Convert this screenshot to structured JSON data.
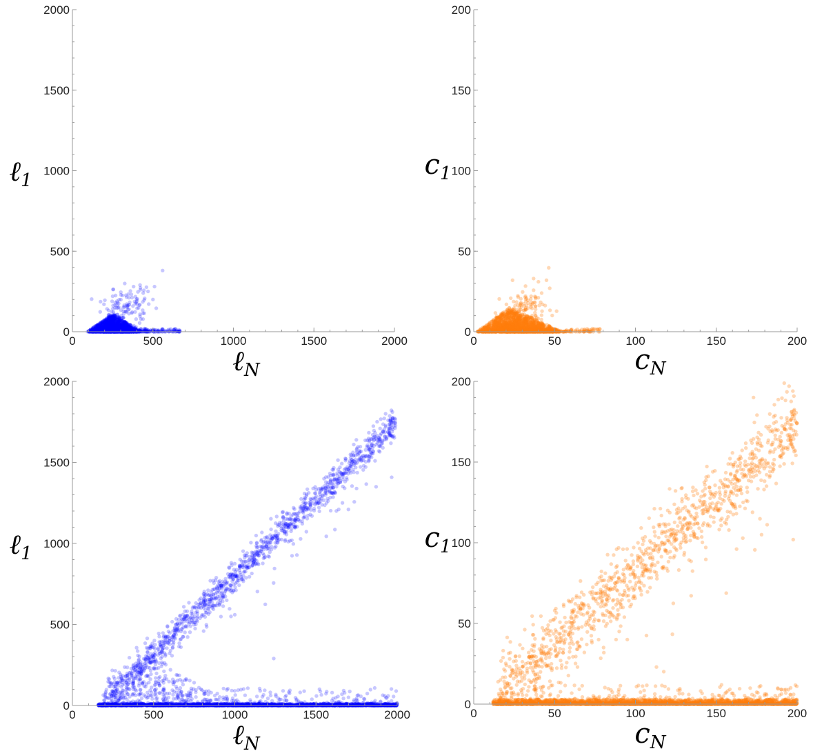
{
  "chart_data": [
    {
      "id": "top-left",
      "type": "scatter",
      "xlabel": "ℓ",
      "xlabel_sub": "N",
      "ylabel": "ℓ",
      "ylabel_sub": "1",
      "xlim": [
        0,
        2000
      ],
      "ylim": [
        0,
        2000
      ],
      "xticks": [
        0,
        500,
        1000,
        1500,
        2000
      ],
      "yticks": [
        0,
        500,
        1000,
        1500,
        2000
      ],
      "minor_tick_step": 100,
      "grid": false,
      "color": "#0000ff",
      "point_opacity": 0.22,
      "clusters": [
        {
          "kind": "triangle",
          "count": 2200,
          "x_start": 90,
          "x_peak": 250,
          "x_end": 430,
          "y_max": 110,
          "skew": 3
        },
        {
          "kind": "blob",
          "count": 120,
          "x_mean": 330,
          "x_sd": 70,
          "y_mean": 150,
          "y_sd": 60
        },
        {
          "kind": "band",
          "count": 180,
          "x_min": 300,
          "x_max": 670,
          "y_max": 20
        }
      ],
      "points": [
        [
          250,
          220
        ],
        [
          380,
          280
        ],
        [
          420,
          290
        ],
        [
          510,
          280
        ],
        [
          560,
          380
        ],
        [
          470,
          250
        ],
        [
          500,
          200
        ],
        [
          440,
          240
        ]
      ]
    },
    {
      "id": "top-right",
      "type": "scatter",
      "xlabel": "c",
      "xlabel_sub": "N",
      "ylabel": "c",
      "ylabel_sub": "1",
      "xlim": [
        0,
        200
      ],
      "ylim": [
        0,
        200
      ],
      "xticks": [
        0,
        50,
        100,
        150,
        200
      ],
      "yticks": [
        0,
        50,
        100,
        150,
        200
      ],
      "minor_tick_step": 10,
      "grid": false,
      "color": "#ff7f0e",
      "point_opacity": 0.3,
      "clusters": [
        {
          "kind": "triangle",
          "count": 2200,
          "x_start": 2,
          "x_peak": 22,
          "x_end": 55,
          "y_max": 15,
          "skew": 3
        },
        {
          "kind": "blob",
          "count": 110,
          "x_mean": 33,
          "x_sd": 7,
          "y_mean": 14,
          "y_sd": 6
        },
        {
          "kind": "band",
          "count": 150,
          "x_min": 30,
          "x_max": 78,
          "y_max": 2
        }
      ],
      "points": [
        [
          24,
          32
        ],
        [
          37,
          33
        ],
        [
          40,
          31
        ],
        [
          45,
          32
        ],
        [
          47,
          27
        ],
        [
          42,
          24
        ]
      ]
    },
    {
      "id": "bottom-left",
      "type": "scatter",
      "xlabel": "ℓ",
      "xlabel_sub": "N",
      "ylabel": "ℓ",
      "ylabel_sub": "1",
      "xlim": [
        0,
        2000
      ],
      "ylim": [
        0,
        2000
      ],
      "xticks": [
        0,
        500,
        1000,
        1500,
        2000
      ],
      "yticks": [
        0,
        500,
        1000,
        1500,
        2000
      ],
      "minor_tick_step": 100,
      "grid": false,
      "color": "#0000ff",
      "point_opacity": 0.22,
      "clusters": [
        {
          "kind": "line",
          "count": 1300,
          "x_min": 190,
          "x_max": 1990,
          "slope": 0.95,
          "intercept": -150,
          "sd": 45
        },
        {
          "kind": "band",
          "count": 2600,
          "x_min": 160,
          "x_max": 2000,
          "y_max": 12
        },
        {
          "kind": "band",
          "count": 420,
          "x_min": 200,
          "x_max": 2000,
          "y_max": 110
        },
        {
          "kind": "triangle",
          "count": 200,
          "x_start": 200,
          "x_peak": 500,
          "x_end": 1000,
          "y_max": 300,
          "skew": 1
        }
      ],
      "points": [
        [
          1240,
          290
        ],
        [
          600,
          400
        ],
        [
          760,
          500
        ],
        [
          1000,
          560
        ],
        [
          1640,
          1210
        ],
        [
          1700,
          1210
        ],
        [
          1870,
          1350
        ],
        [
          500,
          300
        ]
      ]
    },
    {
      "id": "bottom-right",
      "type": "scatter",
      "xlabel": "c",
      "xlabel_sub": "N",
      "ylabel": "c",
      "ylabel_sub": "1",
      "xlim": [
        0,
        200
      ],
      "ylim": [
        0,
        200
      ],
      "xticks": [
        0,
        50,
        100,
        150,
        200
      ],
      "yticks": [
        0,
        50,
        100,
        150,
        200
      ],
      "minor_tick_step": 10,
      "grid": false,
      "color": "#ff7f0e",
      "point_opacity": 0.3,
      "clusters": [
        {
          "kind": "line",
          "count": 1200,
          "x_min": 15,
          "x_max": 200,
          "slope": 0.9,
          "intercept": -7,
          "sd": 10
        },
        {
          "kind": "band",
          "count": 2600,
          "x_min": 12,
          "x_max": 200,
          "y_max": 3
        },
        {
          "kind": "band",
          "count": 450,
          "x_min": 15,
          "x_max": 200,
          "y_max": 12
        }
      ],
      "points": [
        [
          120,
          120
        ],
        [
          113,
          23
        ],
        [
          88,
          40
        ],
        [
          80,
          55
        ],
        [
          178,
          105
        ],
        [
          195,
          197
        ],
        [
          173,
          190
        ],
        [
          90,
          45
        ]
      ]
    }
  ]
}
